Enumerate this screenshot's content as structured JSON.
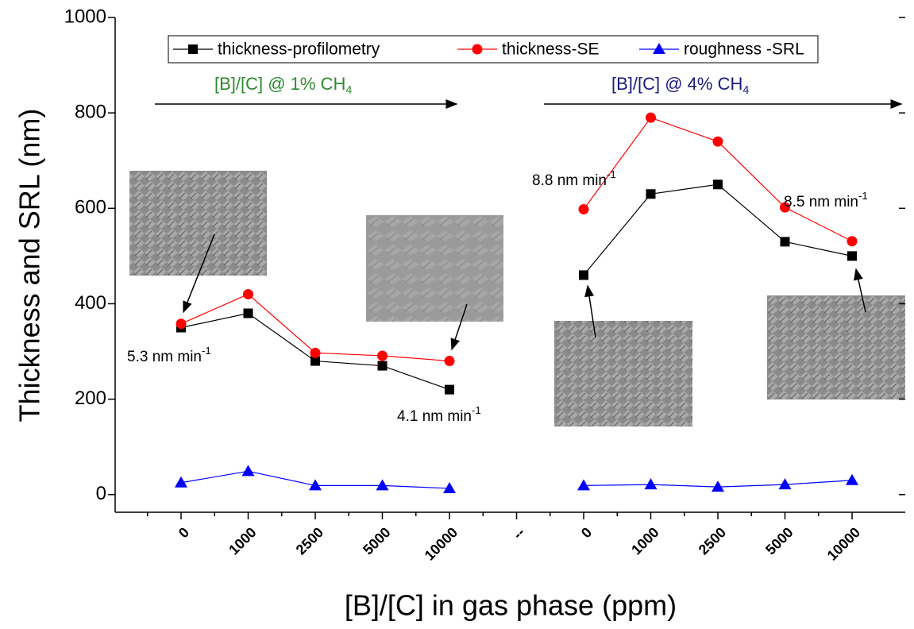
{
  "chart_data": {
    "type": "line",
    "xlabel": "[B]/[C] in gas phase (ppm)",
    "ylabel": "Thickness and SRL (nm)",
    "categories": [
      "0",
      "1000",
      "2500",
      "5000",
      "10000",
      "--",
      "0",
      "1000",
      "2500",
      "5000",
      "10000"
    ],
    "series": [
      {
        "name": "thickness-profilometry",
        "color": "#000000",
        "marker": "square",
        "values": [
          350,
          380,
          280,
          270,
          220,
          null,
          460,
          630,
          650,
          530,
          500
        ]
      },
      {
        "name": "thickness-SE",
        "color": "#ff0000",
        "marker": "circle",
        "values": [
          358,
          420,
          297,
          291,
          280,
          null,
          598,
          790,
          740,
          602,
          531
        ]
      },
      {
        "name": "roughness -SRL",
        "color": "#0000ff",
        "marker": "triangle",
        "values": [
          25,
          49,
          19,
          19,
          13,
          null,
          19,
          21,
          16,
          21,
          30
        ]
      }
    ],
    "ylim": [
      -37,
      1000
    ],
    "yticks": [
      0,
      200,
      400,
      600,
      800,
      1000
    ],
    "annotations": [
      {
        "text": "[B]/[C] @ 1% CH",
        "sub": "4",
        "color": "#2e8b2e"
      },
      {
        "text": "[B]/[C] @ 4% CH",
        "sub": "4",
        "color": "#1a1a80"
      },
      {
        "text": "5.3 nm min",
        "sup": "-1",
        "color": "#000000"
      },
      {
        "text": "4.1 nm min",
        "sup": "-1",
        "color": "#000000"
      },
      {
        "text": "8.8 nm min",
        "sup": "-1",
        "color": "#000000"
      },
      {
        "text": "8.5 nm min",
        "sup": "-1",
        "color": "#000000"
      }
    ]
  }
}
